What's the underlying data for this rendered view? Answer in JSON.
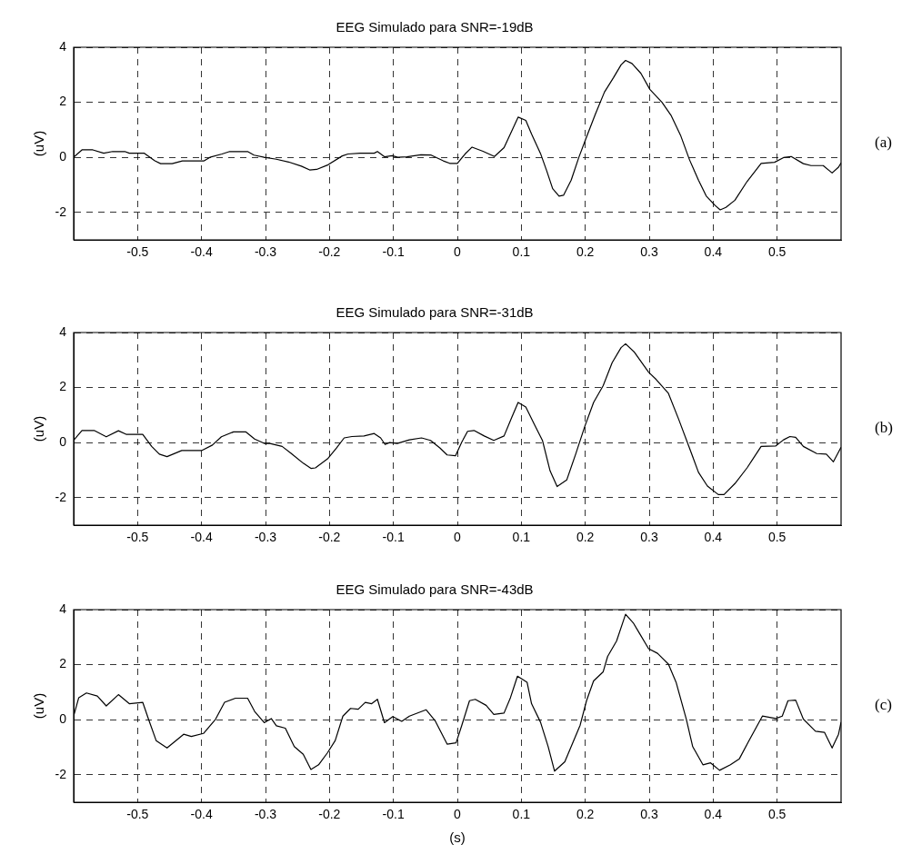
{
  "chart_data": [
    {
      "type": "line",
      "title": "EEG Simulado para SNR=-19dB",
      "ylabel": "(uV)",
      "annotations": [
        "(a)"
      ],
      "xlim": [
        -0.6,
        0.6
      ],
      "xticks": [
        -0.5,
        -0.4,
        -0.3,
        -0.2,
        -0.1,
        0,
        0.1,
        0.2,
        0.3,
        0.4,
        0.5
      ],
      "ylim": [
        -3,
        4
      ],
      "yticks": [
        -2,
        0,
        2,
        4
      ],
      "grid": true,
      "marker": "none",
      "line_style": "solid",
      "color": "#000000",
      "x": [
        -0.6,
        -0.587,
        -0.57,
        -0.553,
        -0.539,
        -0.52,
        -0.513,
        -0.49,
        -0.473,
        -0.464,
        -0.446,
        -0.43,
        -0.396,
        -0.387,
        -0.368,
        -0.356,
        -0.328,
        -0.318,
        -0.302,
        -0.283,
        -0.264,
        -0.244,
        -0.231,
        -0.22,
        -0.202,
        -0.18,
        -0.171,
        -0.152,
        -0.13,
        -0.125,
        -0.114,
        -0.102,
        -0.093,
        -0.079,
        -0.057,
        -0.041,
        -0.022,
        -0.012,
        0,
        0.012,
        0.023,
        0.04,
        0.058,
        0.073,
        0.085,
        0.095,
        0.107,
        0.116,
        0.13,
        0.14,
        0.149,
        0.159,
        0.166,
        0.178,
        0.19,
        0.202,
        0.216,
        0.23,
        0.244,
        0.256,
        0.263,
        0.273,
        0.287,
        0.301,
        0.32,
        0.334,
        0.349,
        0.363,
        0.377,
        0.389,
        0.403,
        0.411,
        0.42,
        0.434,
        0.453,
        0.475,
        0.496,
        0.51,
        0.522,
        0.541,
        0.553,
        0.572,
        0.586,
        0.596,
        0.6
      ],
      "values": [
        0,
        0.27,
        0.27,
        0.15,
        0.21,
        0.21,
        0.15,
        0.15,
        -0.13,
        -0.23,
        -0.23,
        -0.13,
        -0.13,
        0,
        0.12,
        0.21,
        0.21,
        0.08,
        0,
        -0.07,
        -0.17,
        -0.32,
        -0.46,
        -0.44,
        -0.27,
        0.05,
        0.12,
        0.15,
        0.15,
        0.21,
        0.02,
        0.06,
        0,
        0.02,
        0.09,
        0.08,
        -0.13,
        -0.22,
        -0.22,
        0.12,
        0.37,
        0.22,
        0.03,
        0.35,
        0.95,
        1.46,
        1.34,
        0.85,
        0.14,
        -0.51,
        -1.14,
        -1.41,
        -1.38,
        -0.83,
        0,
        0.74,
        1.58,
        2.37,
        2.89,
        3.36,
        3.52,
        3.41,
        3.05,
        2.47,
        2,
        1.53,
        0.8,
        -0.09,
        -0.83,
        -1.4,
        -1.75,
        -1.91,
        -1.82,
        -1.56,
        -0.88,
        -0.22,
        -0.18,
        -0.01,
        0.03,
        -0.23,
        -0.3,
        -0.3,
        -0.57,
        -0.36,
        -0.2
      ]
    },
    {
      "type": "line",
      "title": "EEG Simulado para SNR=-31dB",
      "ylabel": "(uV)",
      "annotations": [
        "(b)"
      ],
      "xlim": [
        -0.6,
        0.6
      ],
      "xticks": [
        -0.5,
        -0.4,
        -0.3,
        -0.2,
        -0.1,
        0,
        0.1,
        0.2,
        0.3,
        0.4,
        0.5
      ],
      "ylim": [
        -3,
        4
      ],
      "yticks": [
        -2,
        0,
        2,
        4
      ],
      "grid": true,
      "marker": "none",
      "line_style": "solid",
      "color": "#000000",
      "x": [
        -0.6,
        -0.587,
        -0.568,
        -0.549,
        -0.53,
        -0.518,
        -0.492,
        -0.478,
        -0.466,
        -0.454,
        -0.431,
        -0.4,
        -0.383,
        -0.369,
        -0.35,
        -0.331,
        -0.317,
        -0.302,
        -0.293,
        -0.274,
        -0.26,
        -0.241,
        -0.229,
        -0.222,
        -0.203,
        -0.189,
        -0.177,
        -0.165,
        -0.146,
        -0.13,
        -0.12,
        -0.113,
        -0.106,
        -0.094,
        -0.075,
        -0.056,
        -0.042,
        -0.027,
        -0.016,
        -0.003,
        0.007,
        0.016,
        0.026,
        0.042,
        0.057,
        0.073,
        0.085,
        0.095,
        0.107,
        0.121,
        0.133,
        0.145,
        0.156,
        0.171,
        0.185,
        0.199,
        0.213,
        0.228,
        0.242,
        0.256,
        0.263,
        0.277,
        0.299,
        0.311,
        0.33,
        0.346,
        0.363,
        0.377,
        0.391,
        0.408,
        0.417,
        0.434,
        0.453,
        0.475,
        0.498,
        0.51,
        0.52,
        0.529,
        0.541,
        0.562,
        0.577,
        0.588,
        0.6
      ],
      "values": [
        0.08,
        0.44,
        0.44,
        0.21,
        0.43,
        0.3,
        0.3,
        -0.14,
        -0.42,
        -0.51,
        -0.29,
        -0.29,
        -0.09,
        0.21,
        0.39,
        0.39,
        0.13,
        -0.03,
        -0.03,
        -0.14,
        -0.39,
        -0.75,
        -0.94,
        -0.92,
        -0.59,
        -0.2,
        0.17,
        0.22,
        0.24,
        0.33,
        0.17,
        -0.07,
        0,
        -0.03,
        0.1,
        0.17,
        0.08,
        -0.2,
        -0.45,
        -0.48,
        0.02,
        0.41,
        0.44,
        0.24,
        0.08,
        0.24,
        0.91,
        1.46,
        1.29,
        0.63,
        0.08,
        -1.03,
        -1.6,
        -1.36,
        -0.42,
        0.57,
        1.46,
        2.07,
        2.9,
        3.45,
        3.59,
        3.28,
        2.56,
        2.29,
        1.79,
        0.85,
        -0.2,
        -1.08,
        -1.58,
        -1.89,
        -1.89,
        -1.49,
        -0.92,
        -0.14,
        -0.12,
        0.1,
        0.22,
        0.19,
        -0.14,
        -0.4,
        -0.42,
        -0.7,
        -0.17
      ]
    },
    {
      "type": "line",
      "title": "EEG Simulado para SNR=-43dB",
      "xlabel": "(s)",
      "ylabel": "(uV)",
      "annotations": [
        "(c)"
      ],
      "xlim": [
        -0.6,
        0.6
      ],
      "xticks": [
        -0.5,
        -0.4,
        -0.3,
        -0.2,
        -0.1,
        0,
        0.1,
        0.2,
        0.3,
        0.4,
        0.5
      ],
      "ylim": [
        -3,
        4
      ],
      "yticks": [
        -2,
        0,
        2,
        4
      ],
      "grid": true,
      "marker": "none",
      "line_style": "solid",
      "color": "#000000",
      "x": [
        -0.6,
        -0.592,
        -0.58,
        -0.563,
        -0.549,
        -0.53,
        -0.513,
        -0.492,
        -0.483,
        -0.471,
        -0.454,
        -0.428,
        -0.416,
        -0.397,
        -0.378,
        -0.364,
        -0.347,
        -0.328,
        -0.317,
        -0.302,
        -0.291,
        -0.283,
        -0.269,
        -0.255,
        -0.241,
        -0.229,
        -0.217,
        -0.203,
        -0.191,
        -0.179,
        -0.167,
        -0.155,
        -0.144,
        -0.134,
        -0.125,
        -0.114,
        -0.101,
        -0.087,
        -0.075,
        -0.049,
        -0.035,
        -0.016,
        -0.002,
        0.007,
        0.019,
        0.028,
        0.045,
        0.057,
        0.073,
        0.083,
        0.094,
        0.109,
        0.116,
        0.13,
        0.142,
        0.152,
        0.168,
        0.192,
        0.202,
        0.213,
        0.228,
        0.235,
        0.249,
        0.263,
        0.275,
        0.285,
        0.299,
        0.313,
        0.33,
        0.342,
        0.358,
        0.368,
        0.384,
        0.396,
        0.41,
        0.427,
        0.441,
        0.456,
        0.477,
        0.498,
        0.508,
        0.517,
        0.529,
        0.541,
        0.56,
        0.574,
        0.586,
        0.596,
        0.6
      ],
      "values": [
        0.13,
        0.8,
        0.97,
        0.86,
        0.5,
        0.91,
        0.58,
        0.63,
        0.02,
        -0.76,
        -1.03,
        -0.53,
        -0.61,
        -0.5,
        0.02,
        0.63,
        0.78,
        0.78,
        0.3,
        -0.11,
        0.04,
        -0.22,
        -0.31,
        -0.98,
        -1.26,
        -1.81,
        -1.64,
        -1.2,
        -0.76,
        0.13,
        0.41,
        0.38,
        0.63,
        0.58,
        0.74,
        -0.11,
        0.11,
        -0.06,
        0.13,
        0.36,
        -0.03,
        -0.89,
        -0.84,
        -0.2,
        0.69,
        0.74,
        0.52,
        0.19,
        0.24,
        0.8,
        1.58,
        1.36,
        0.58,
        -0.09,
        -0.98,
        -1.87,
        -1.53,
        -0.2,
        0.69,
        1.41,
        1.74,
        2.3,
        2.86,
        3.83,
        3.52,
        3.13,
        2.58,
        2.41,
        2.02,
        1.36,
        0.02,
        -0.98,
        -1.64,
        -1.57,
        -1.84,
        -1.64,
        -1.42,
        -0.76,
        0.13,
        0.04,
        0.13,
        0.69,
        0.71,
        0.02,
        -0.42,
        -0.46,
        -1.03,
        -0.53,
        -0.09
      ]
    }
  ]
}
